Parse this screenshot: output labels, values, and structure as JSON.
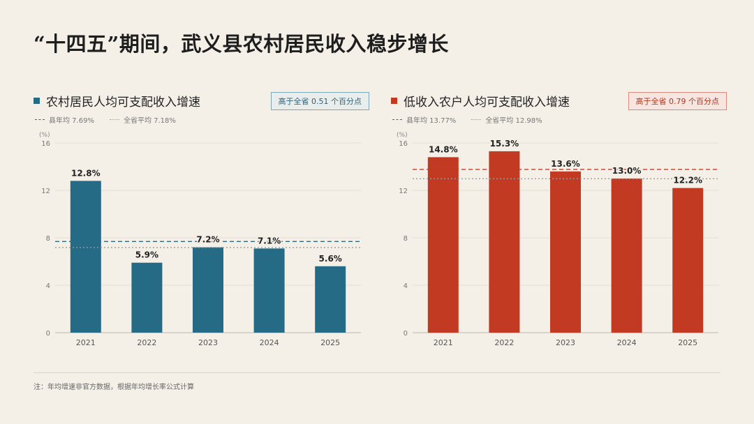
{
  "title": "“十四五”期间，武义县农村居民收入稳步增长",
  "footnote": "注：年均增速非官方数据，根据年均增长率公式计算",
  "colors": {
    "blue": "#256b85",
    "red": "#c33a22",
    "background": "#f4f0e8"
  },
  "panels": [
    {
      "title": "农村居民人均可支配收入增速",
      "badge": "高于全省 0.51 个百分点",
      "legend_county": "县年均 7.69%",
      "legend_province": "全省平均 7.18%"
    },
    {
      "title": "低收入农户人均可支配收入增速",
      "badge": "高于全省 0.79 个百分点",
      "legend_county": "县年均 13.77%",
      "legend_province": "全省平均 12.98%"
    }
  ],
  "chart_data": [
    {
      "type": "bar",
      "unit": "(%)",
      "categories": [
        "2021",
        "2022",
        "2023",
        "2024",
        "2025"
      ],
      "values": [
        12.8,
        5.9,
        7.2,
        7.1,
        5.6
      ],
      "value_labels": [
        "12.8%",
        "5.9%",
        "7.2%",
        "7.1%",
        "5.6%"
      ],
      "ylim": [
        0,
        16
      ],
      "yticks": [
        0,
        4,
        8,
        12,
        16
      ],
      "reference_lines": [
        {
          "value": 7.69,
          "style": "dashed",
          "color": "#256b85"
        },
        {
          "value": 7.18,
          "style": "dotted",
          "color": "#9a9a9a"
        }
      ],
      "color": "#256b85",
      "grid": true
    },
    {
      "type": "bar",
      "unit": "(%)",
      "categories": [
        "2021",
        "2022",
        "2023",
        "2024",
        "2025"
      ],
      "values": [
        14.8,
        15.3,
        13.6,
        13.0,
        12.2
      ],
      "value_labels": [
        "14.8%",
        "15.3%",
        "13.6%",
        "13.0%",
        "12.2%"
      ],
      "ylim": [
        0,
        16
      ],
      "yticks": [
        0,
        4,
        8,
        12,
        16
      ],
      "reference_lines": [
        {
          "value": 13.77,
          "style": "dashed",
          "color": "#c33a22"
        },
        {
          "value": 12.98,
          "style": "dotted",
          "color": "#9a9a9a"
        }
      ],
      "color": "#c33a22",
      "grid": true
    }
  ]
}
